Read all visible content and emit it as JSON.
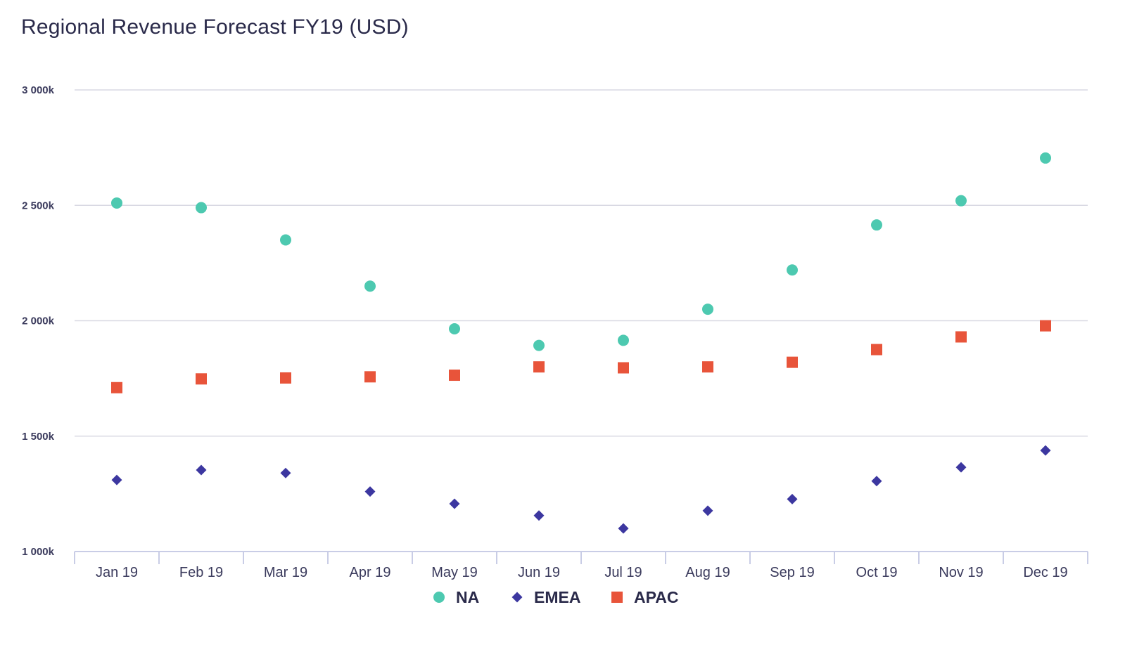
{
  "chart_data": {
    "type": "scatter",
    "title": "Regional Revenue Forecast FY19 (USD)",
    "xlabel": "",
    "ylabel": "",
    "categories": [
      "Jan 19",
      "Feb 19",
      "Mar 19",
      "Apr 19",
      "May 19",
      "Jun 19",
      "Jul 19",
      "Aug 19",
      "Sep 19",
      "Oct 19",
      "Nov 19",
      "Dec 19"
    ],
    "ylim": [
      1000,
      3000
    ],
    "yticks": [
      1000,
      1500,
      2000,
      2500,
      3000
    ],
    "ytick_labels": [
      "1 000k",
      "1 500k",
      "2 000k",
      "2 500k",
      "3 000k"
    ],
    "grid": true,
    "legend_position": "bottom-center",
    "series": [
      {
        "name": "NA",
        "marker": "circle",
        "color": "#4dc9b0",
        "values": [
          2510,
          2490,
          2350,
          2150,
          1965,
          1893,
          1915,
          2050,
          2220,
          2415,
          2520,
          2705
        ]
      },
      {
        "name": "EMEA",
        "marker": "diamond",
        "color": "#3c37a0",
        "values": [
          1310,
          1353,
          1340,
          1260,
          1207,
          1156,
          1100,
          1177,
          1227,
          1305,
          1365,
          1438
        ]
      },
      {
        "name": "APAC",
        "marker": "square",
        "color": "#e8543a",
        "values": [
          1710,
          1748,
          1752,
          1757,
          1764,
          1800,
          1796,
          1800,
          1820,
          1875,
          1930,
          1978
        ]
      }
    ]
  }
}
